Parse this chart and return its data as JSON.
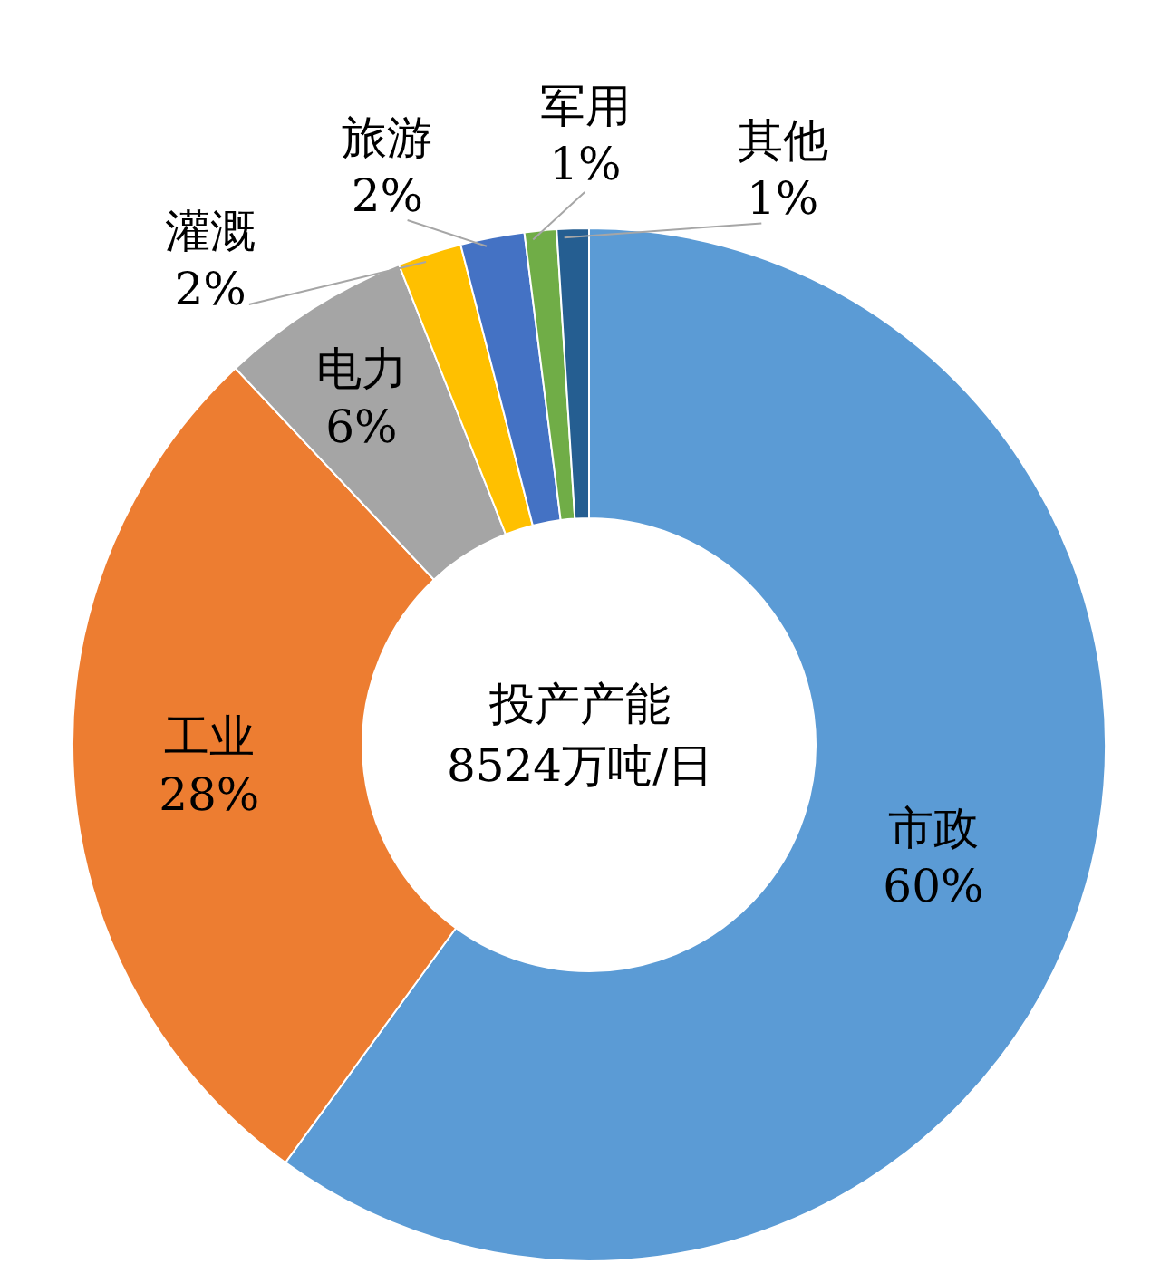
{
  "chart_data": {
    "type": "donut",
    "categories": [
      "市政",
      "工业",
      "电力",
      "灌溉",
      "旅游",
      "军用",
      "其他"
    ],
    "values": [
      60,
      28,
      6,
      2,
      2,
      1,
      1
    ],
    "value_labels": [
      "60%",
      "28%",
      "6%",
      "2%",
      "2%",
      "1%",
      "1%"
    ],
    "colors": [
      "#5b9bd5",
      "#ed7d31",
      "#a5a5a5",
      "#ffc000",
      "#4472c4",
      "#70ad47",
      "#255e91"
    ],
    "annotations": [
      "投产产能",
      "8524万吨/日"
    ]
  }
}
